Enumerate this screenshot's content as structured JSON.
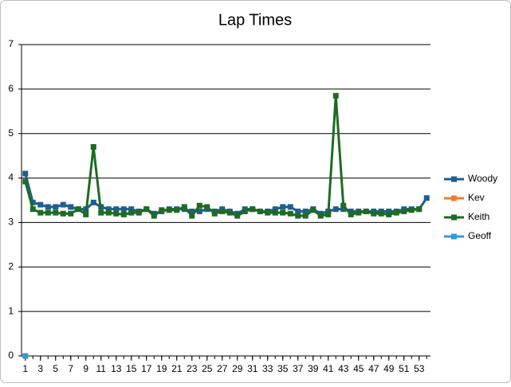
{
  "chart_data": {
    "type": "line",
    "title": "Lap Times",
    "x": [
      1,
      2,
      3,
      4,
      5,
      6,
      7,
      8,
      9,
      10,
      11,
      12,
      13,
      14,
      15,
      16,
      17,
      18,
      19,
      20,
      21,
      22,
      23,
      24,
      25,
      26,
      27,
      28,
      29,
      30,
      31,
      32,
      33,
      34,
      35,
      36,
      37,
      38,
      39,
      40,
      41,
      42,
      43,
      44,
      45,
      46,
      47,
      48,
      49,
      50,
      51,
      52,
      53,
      54
    ],
    "xlim": [
      0.5,
      54.5
    ],
    "xticks": [
      1,
      3,
      5,
      7,
      9,
      11,
      13,
      15,
      17,
      19,
      21,
      23,
      25,
      27,
      29,
      31,
      33,
      35,
      37,
      39,
      41,
      43,
      45,
      47,
      49,
      51,
      53
    ],
    "ylim": [
      0,
      7
    ],
    "yticks": [
      0,
      1,
      2,
      3,
      4,
      5,
      6,
      7
    ],
    "grid": true,
    "legend": "right",
    "series": [
      {
        "name": "Woody",
        "color": "#1f5f8b",
        "values": [
          4.1,
          3.45,
          3.4,
          3.35,
          3.35,
          3.4,
          3.35,
          3.3,
          3.3,
          3.45,
          3.35,
          3.3,
          3.3,
          3.3,
          3.3,
          3.25,
          3.3,
          3.2,
          3.25,
          3.3,
          3.3,
          3.3,
          3.25,
          3.25,
          3.3,
          3.25,
          3.3,
          3.25,
          3.2,
          3.3,
          3.3,
          3.25,
          3.25,
          3.3,
          3.35,
          3.35,
          3.25,
          3.25,
          3.3,
          3.2,
          3.25,
          3.3,
          3.3,
          3.25,
          3.25,
          3.25,
          3.25,
          3.25,
          3.25,
          3.25,
          3.3,
          3.3,
          3.3,
          3.55
        ]
      },
      {
        "name": "Kev",
        "color": "#ed7d31",
        "values": [
          0,
          null,
          null,
          null,
          null,
          null,
          null,
          null,
          null,
          null,
          null,
          null,
          null,
          null,
          null,
          null,
          null,
          null,
          null,
          null,
          null,
          null,
          null,
          null,
          null,
          null,
          null,
          null,
          null,
          null,
          null,
          null,
          null,
          null,
          null,
          null,
          null,
          null,
          null,
          null,
          null,
          null,
          null,
          null,
          null,
          null,
          null,
          null,
          null,
          null,
          null,
          null,
          null,
          null
        ]
      },
      {
        "name": "Keith",
        "color": "#1e6b24",
        "values": [
          3.92,
          3.3,
          3.22,
          3.22,
          3.22,
          3.2,
          3.2,
          3.3,
          3.18,
          4.7,
          3.22,
          3.22,
          3.2,
          3.18,
          3.22,
          3.22,
          3.3,
          3.15,
          3.28,
          3.28,
          3.28,
          3.35,
          3.15,
          3.38,
          3.35,
          3.2,
          3.25,
          3.22,
          3.15,
          3.25,
          3.3,
          3.25,
          3.22,
          3.22,
          3.22,
          3.2,
          3.15,
          3.15,
          3.28,
          3.15,
          3.18,
          5.85,
          3.38,
          3.18,
          3.22,
          3.25,
          3.2,
          3.2,
          3.18,
          3.22,
          3.25,
          3.28,
          3.3,
          null
        ]
      },
      {
        "name": "Geoff",
        "color": "#2e9bd6",
        "values": [
          0,
          null,
          null,
          null,
          null,
          null,
          null,
          null,
          null,
          null,
          null,
          null,
          null,
          null,
          null,
          null,
          null,
          null,
          null,
          null,
          null,
          null,
          null,
          null,
          null,
          null,
          null,
          null,
          null,
          null,
          null,
          null,
          null,
          null,
          null,
          null,
          null,
          null,
          null,
          null,
          null,
          null,
          null,
          null,
          null,
          null,
          null,
          null,
          null,
          null,
          null,
          null,
          null,
          null
        ]
      }
    ]
  }
}
